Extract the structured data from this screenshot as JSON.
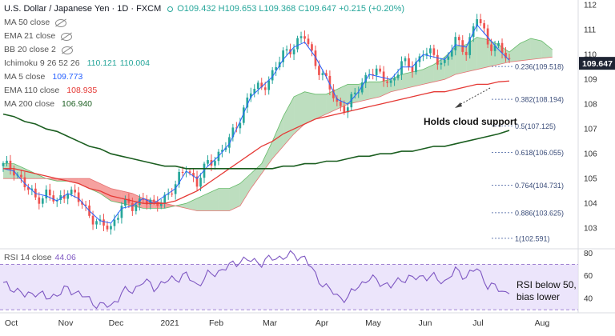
{
  "header": {
    "title": "U.S. Dollar / Japanese Yen · 1D · FXCM",
    "ohlc": "O109.432 H109.653 L109.368 C109.647 +0.215 (+0.20%)"
  },
  "indicators": [
    {
      "name": "MA 50 close",
      "values": [],
      "color": "#2962ff",
      "hidden": true
    },
    {
      "name": "EMA 21 close",
      "values": [],
      "color": "#2962ff",
      "hidden": true
    },
    {
      "name": "BB 20 close 2",
      "values": [],
      "color": "#2962ff",
      "hidden": true
    },
    {
      "name": "Ichimoku 9 26 52 26",
      "values": [
        "110.121",
        "110.004"
      ],
      "color": "#26a69a",
      "hidden": false
    },
    {
      "name": "MA 5 close",
      "values": [
        "109.773"
      ],
      "color": "#2962ff",
      "hidden": false
    },
    {
      "name": "EMA 110 close",
      "values": [
        "108.935"
      ],
      "color": "#e53935",
      "hidden": false
    },
    {
      "name": "MA 200 close",
      "values": [
        "106.940"
      ],
      "color": "#1b5e20",
      "hidden": false
    }
  ],
  "rsi": {
    "label": "RSI 14 close",
    "value": "44.06",
    "color": "#7e57c2",
    "band_color": "#e6dcfa"
  },
  "annotations": {
    "cloud": "Holds cloud support",
    "rsi_line1": "RSI below 50,",
    "rsi_line2": "bias lower"
  },
  "current_price_label": "109.647",
  "chart_data": [
    {
      "type": "candlestick",
      "title": "U.S. Dollar / Japanese Yen · 1D · FXCM",
      "x_ticks": [
        "Oct",
        "Nov",
        "Dec",
        "2021",
        "Feb",
        "Mar",
        "Apr",
        "May",
        "Jun",
        "Jul",
        "Aug"
      ],
      "y_ticks": [
        103.0,
        104.0,
        105.0,
        106.0,
        107.0,
        108.0,
        109.0,
        110.0,
        111.0,
        112.0
      ],
      "ylim": [
        102.2,
        112.2
      ],
      "last_close": 109.647,
      "close_path": [
        105.5,
        105.4,
        104.7,
        104.2,
        104.4,
        104.0,
        104.6,
        104.1,
        103.6,
        103.1,
        103.0,
        104.0,
        103.8,
        104.3,
        103.8,
        104.3,
        104.7,
        105.5,
        104.8,
        105.6,
        106.0,
        106.5,
        107.5,
        108.5,
        108.7,
        109.2,
        110.0,
        110.4,
        110.7,
        109.7,
        108.9,
        108.0,
        107.9,
        108.6,
        109.4,
        109.1,
        108.9,
        109.6,
        109.5,
        110.1,
        109.9,
        109.7,
        110.5,
        110.2,
        111.5,
        110.5,
        110.3,
        109.65
      ],
      "candles_per_step": 3,
      "series": [
        {
          "name": "MA 5 close",
          "color": "#2962ff",
          "values": [
            105.4,
            105.3,
            104.8,
            104.4,
            104.3,
            104.1,
            104.4,
            104.2,
            103.7,
            103.3,
            103.2,
            103.8,
            103.9,
            104.2,
            104.0,
            104.3,
            104.6,
            105.3,
            105.0,
            105.5,
            105.9,
            106.4,
            107.3,
            108.3,
            108.7,
            109.1,
            109.8,
            110.3,
            110.5,
            109.9,
            109.1,
            108.2,
            108.0,
            108.5,
            109.2,
            109.1,
            109.0,
            109.5,
            109.5,
            110.0,
            109.9,
            109.8,
            110.4,
            110.3,
            111.2,
            110.7,
            110.2,
            109.77
          ]
        },
        {
          "name": "EMA 110 close",
          "color": "#e53935",
          "values": [
            105.4,
            105.4,
            105.3,
            105.2,
            105.1,
            105.0,
            104.9,
            104.8,
            104.6,
            104.5,
            104.3,
            104.2,
            104.1,
            104.0,
            104.0,
            104.0,
            104.1,
            104.3,
            104.5,
            104.8,
            105.1,
            105.4,
            105.7,
            106.0,
            106.3,
            106.5,
            106.8,
            107.0,
            107.2,
            107.4,
            107.5,
            107.6,
            107.7,
            107.8,
            107.9,
            108.0,
            108.1,
            108.2,
            108.3,
            108.4,
            108.5,
            108.5,
            108.6,
            108.7,
            108.8,
            108.8,
            108.9,
            108.935
          ]
        },
        {
          "name": "MA 200 close",
          "color": "#1b5e20",
          "values": [
            107.6,
            107.5,
            107.3,
            107.2,
            107.0,
            106.9,
            106.7,
            106.5,
            106.3,
            106.2,
            106.0,
            105.9,
            105.8,
            105.7,
            105.6,
            105.5,
            105.5,
            105.4,
            105.4,
            105.4,
            105.4,
            105.4,
            105.4,
            105.4,
            105.4,
            105.4,
            105.5,
            105.5,
            105.6,
            105.6,
            105.7,
            105.7,
            105.8,
            105.9,
            105.9,
            106.0,
            106.0,
            106.1,
            106.1,
            106.2,
            106.3,
            106.3,
            106.4,
            106.5,
            106.6,
            106.7,
            106.8,
            106.94
          ]
        },
        {
          "name": "Ichimoku Senkou A",
          "color": "#43a047",
          "values": [
            105.6,
            105.6,
            105.4,
            105.2,
            105.0,
            104.9,
            104.9,
            104.8,
            104.6,
            104.4,
            104.1,
            104.0,
            103.9,
            103.8,
            103.8,
            103.8,
            103.9,
            104.0,
            104.2,
            104.4,
            104.6,
            104.6,
            104.8,
            105.2,
            105.6,
            106.5,
            107.5,
            108.3,
            108.5,
            108.4,
            108.4,
            108.6,
            108.8,
            108.8,
            108.9,
            108.9,
            109.0,
            109.2,
            109.3,
            109.4,
            109.6,
            109.9,
            110.3,
            110.4,
            110.7,
            110.6,
            110.4,
            110.1
          ]
        },
        {
          "name": "Ichimoku Senkou B",
          "color": "#ef5350",
          "values": [
            105.0,
            105.0,
            105.0,
            105.0,
            105.0,
            105.0,
            105.0,
            105.0,
            105.0,
            104.8,
            104.6,
            104.5,
            104.4,
            104.2,
            104.1,
            104.0,
            103.9,
            103.8,
            103.7,
            103.7,
            103.7,
            103.7,
            103.9,
            104.6,
            105.2,
            105.8,
            106.3,
            106.8,
            107.2,
            107.4,
            107.6,
            107.8,
            108.0,
            108.1,
            108.2,
            108.3,
            108.5,
            108.6,
            108.7,
            108.8,
            108.9,
            109.0,
            109.2,
            109.3,
            109.4,
            109.5,
            109.6,
            109.7
          ]
        }
      ],
      "fibonacci": [
        {
          "label": "0.236(109.518)",
          "level": 109.518
        },
        {
          "label": "0.382(108.194)",
          "level": 108.194
        },
        {
          "label": "0.5(107.125)",
          "level": 107.125
        },
        {
          "label": "0.618(106.055)",
          "level": 106.055
        },
        {
          "label": "0.764(104.731)",
          "level": 104.731
        },
        {
          "label": "0.886(103.625)",
          "level": 103.625
        },
        {
          "label": "1(102.591)",
          "level": 102.591
        }
      ],
      "up_color": "#26a69a",
      "down_color": "#ef5350"
    },
    {
      "type": "line",
      "title": "RSI 14 close",
      "y_ticks": [
        40.0,
        60.0,
        80.0
      ],
      "ylim": [
        28.0,
        83.0
      ],
      "band": [
        30,
        70
      ],
      "series": [
        {
          "name": "RSI 14 close",
          "color": "#7e57c2",
          "values": [
            52,
            49,
            42,
            46,
            40,
            44,
            48,
            45,
            38,
            34,
            33,
            45,
            47,
            55,
            50,
            54,
            58,
            60,
            52,
            60,
            64,
            68,
            74,
            73,
            72,
            75,
            77,
            78,
            76,
            60,
            50,
            42,
            40,
            52,
            57,
            55,
            50,
            58,
            57,
            60,
            58,
            55,
            64,
            60,
            66,
            52,
            48,
            44.06
          ]
        }
      ]
    }
  ]
}
